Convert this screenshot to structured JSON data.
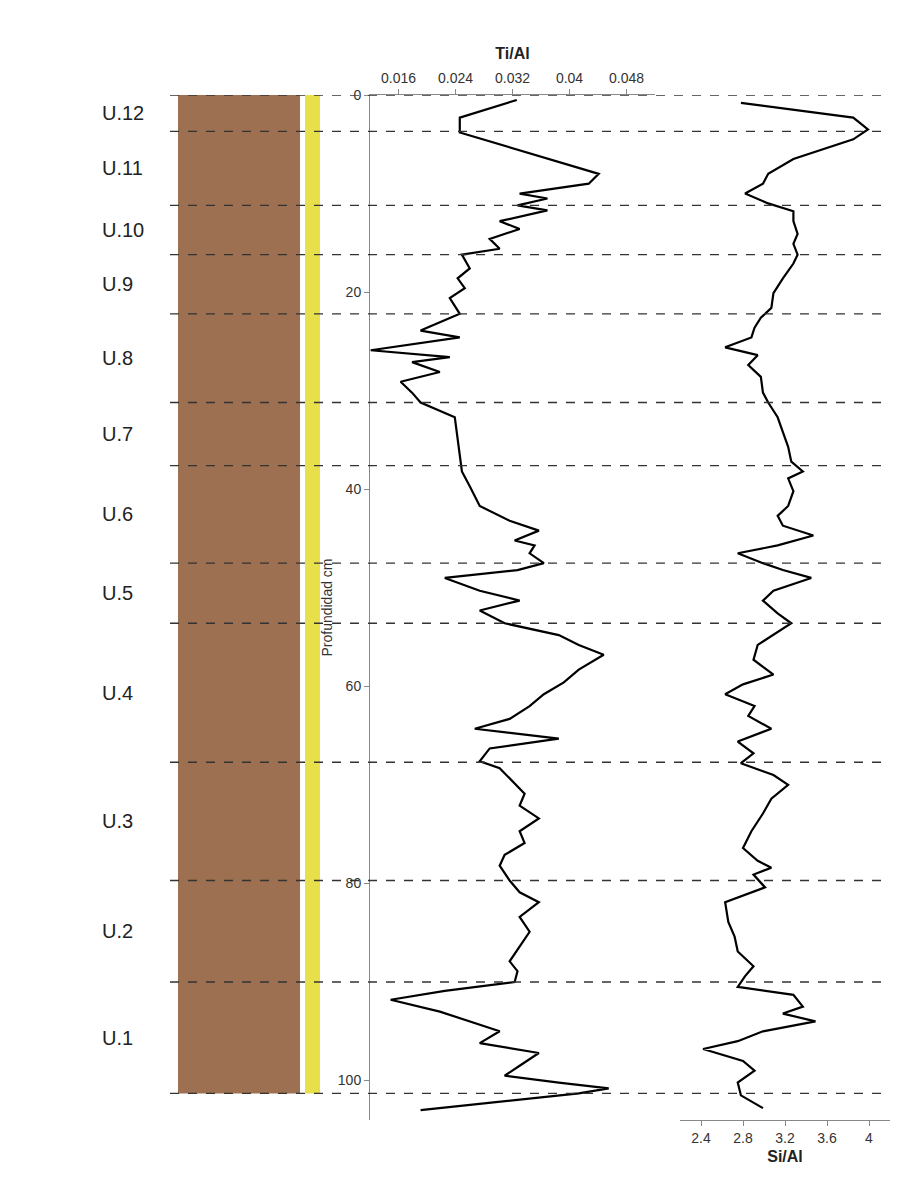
{
  "chart_data": {
    "type": "line",
    "ylabel": "Profundidad cm",
    "ylim": [
      0,
      104
    ],
    "yticks": [
      0,
      20,
      40,
      60,
      80,
      100
    ],
    "grid": false,
    "tick_labels": true,
    "panels": [
      {
        "xlabel": "Ti/Al",
        "xlim": [
          0.012,
          0.052
        ],
        "xticks": [
          0.016,
          0.024,
          0.032,
          0.04,
          0.048
        ],
        "series": [
          {
            "name": "Ti/Al",
            "color": "#000000",
            "depth": [
              0.5,
              2.3,
              3.8,
              8,
              9,
              10,
              10.5,
              11.2,
              11.7,
              12.8,
              13.6,
              14.6,
              15.6,
              16.2,
              17.6,
              18.6,
              19.6,
              20.6,
              22.2,
              23.1,
              23.9,
              24.6,
              25.9,
              26.6,
              27.1,
              28.1,
              29.1,
              30.2,
              31.2,
              32.7,
              34.7,
              36.7,
              38.2,
              39.7,
              41.7,
              43.2,
              44.2,
              45.2,
              45.7,
              46.5,
              47.5,
              48.2,
              49.0,
              50.3,
              51.3,
              52.3,
              53.6,
              54.8,
              55.8,
              56.8,
              58.3,
              59.6,
              60.8,
              62,
              63.3,
              64.3,
              65.3,
              66.3,
              67.6,
              68.3,
              69.3,
              70.9,
              72.1,
              73.4,
              74.7,
              75.9,
              77.1,
              78.2,
              79.7,
              80.9,
              81.9,
              83.4,
              84.9,
              86.4,
              87.9,
              88.9,
              90,
              90.9,
              91.8,
              93,
              94,
              95,
              96.2,
              97.2,
              98.5,
              99.5,
              100.2,
              100.8,
              101.3,
              103
            ],
            "values": [
              0.0326,
              0.0246,
              0.0246,
              0.0441,
              0.0427,
              0.033,
              0.0369,
              0.0327,
              0.0369,
              0.0302,
              0.033,
              0.0288,
              0.0302,
              0.0249,
              0.026,
              0.0243,
              0.0253,
              0.0232,
              0.0246,
              0.0218,
              0.0191,
              0.0246,
              0.0121,
              0.0232,
              0.0179,
              0.0218,
              0.0163,
              0.0179,
              0.0191,
              0.0239,
              0.0243,
              0.0246,
              0.0249,
              0.026,
              0.0274,
              0.0316,
              0.0357,
              0.0323,
              0.0351,
              0.0344,
              0.0364,
              0.0327,
              0.0225,
              0.0274,
              0.033,
              0.0274,
              0.0309,
              0.0385,
              0.0413,
              0.0448,
              0.0413,
              0.0392,
              0.0364,
              0.0344,
              0.0316,
              0.0267,
              0.0385,
              0.0288,
              0.0274,
              0.0302,
              0.0316,
              0.0337,
              0.033,
              0.0357,
              0.033,
              0.0337,
              0.0309,
              0.0302,
              0.0316,
              0.033,
              0.0357,
              0.033,
              0.0344,
              0.033,
              0.0316,
              0.0327,
              0.0323,
              0.0225,
              0.0149,
              0.0218,
              0.026,
              0.0302,
              0.0274,
              0.0357,
              0.033,
              0.0309,
              0.0385,
              0.0455,
              0.0413,
              0.0191
            ]
          }
        ]
      },
      {
        "xlabel": "Si/Al",
        "xlim": [
          2.2,
          4.2
        ],
        "xticks": [
          2.4,
          2.8,
          3.2,
          3.6,
          4
        ],
        "series": [
          {
            "name": "Si/Al",
            "color": "#000000",
            "depth": [
              0.8,
              2.3,
              3.5,
              4.5,
              6.5,
              8,
              9,
              10,
              11,
              11.8,
              12.8,
              14.1,
              15.1,
              16.2,
              17.1,
              18.6,
              20.1,
              21.6,
              22.6,
              23.6,
              24.6,
              25.6,
              26.4,
              27.4,
              28.6,
              30.2,
              31.2,
              32.7,
              34.2,
              35.7,
              37.2,
              38.2,
              38.9,
              40.2,
              41.7,
              42.7,
              43.7,
              44.7,
              45.7,
              46.5,
              47.5,
              48.2,
              49.0,
              50.3,
              51.3,
              52.6,
              53.6,
              54.8,
              55.8,
              57.3,
              58.8,
              59.8,
              60.8,
              62,
              63,
              64.3,
              65.6,
              66.8,
              67.8,
              69,
              70,
              71.4,
              72.9,
              74.7,
              76.4,
              77.7,
              78.4,
              79.1,
              80.4,
              81.9,
              83.9,
              85.4,
              86.9,
              88.4,
              89.4,
              90.5,
              91.3,
              92.5,
              93.2,
              94,
              95,
              96,
              96.8,
              98,
              99,
              100.2,
              101.5,
              102.8
            ],
            "values": [
              2.78,
              3.85,
              3.99,
              3.85,
              3.28,
              3.04,
              2.99,
              2.82,
              3.04,
              3.28,
              3.28,
              3.32,
              3.28,
              3.32,
              3.28,
              3.18,
              3.09,
              3.07,
              2.97,
              2.91,
              2.88,
              2.63,
              2.94,
              2.85,
              2.97,
              2.99,
              3.04,
              3.13,
              3.18,
              3.23,
              3.26,
              3.37,
              3.23,
              3.28,
              3.23,
              3.13,
              3.18,
              3.47,
              3.13,
              2.75,
              2.99,
              3.18,
              3.45,
              3.09,
              2.99,
              3.13,
              3.26,
              3.09,
              2.94,
              2.9,
              3.09,
              2.8,
              2.63,
              2.91,
              2.85,
              3.07,
              2.75,
              2.9,
              2.78,
              3.09,
              3.23,
              3.07,
              2.99,
              2.88,
              2.8,
              2.94,
              3.07,
              2.9,
              3.01,
              2.63,
              2.66,
              2.72,
              2.75,
              2.9,
              2.82,
              2.75,
              3.28,
              3.37,
              3.18,
              3.49,
              2.99,
              2.75,
              2.42,
              2.8,
              2.91,
              2.75,
              2.78,
              2.99
            ]
          }
        ]
      }
    ],
    "units": {
      "labels": [
        "U.12",
        "U.11",
        "U.10",
        "U.9",
        "U.8",
        "U.7",
        "U.6",
        "U.5",
        "U.4",
        "U.3",
        "U.2",
        "U.1"
      ],
      "boundaries": [
        0,
        3.7,
        11.2,
        16.2,
        22.2,
        31.2,
        37.6,
        47.5,
        53.6,
        67.7,
        79.7,
        90,
        101.3
      ]
    }
  }
}
